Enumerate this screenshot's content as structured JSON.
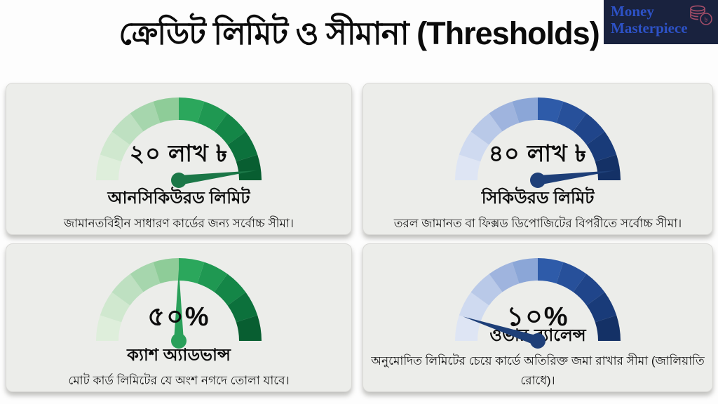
{
  "header": {
    "title": "ক্রেডিট লিমিট ও সীমানা (Thresholds)",
    "logo": {
      "line1": "Money",
      "line2": "Masterpiece",
      "currency_symbol": "৳",
      "text_color": "#2d52c7",
      "bg_color": "#19223e",
      "icon_color": "#a34d68"
    }
  },
  "cards": [
    {
      "value": "২০ লাখ ৳",
      "label": "আনসিকিউরড লিমিট",
      "description": "জামানতবিহীন সাধারণ কার্ডের জন্য সর্বোচ্চ সীমা।",
      "gauge": {
        "percent": 96,
        "needle_length": 112,
        "needle_color": "#1b7747",
        "segment_colors": [
          "#deeedb",
          "#d0e8cf",
          "#bee0c1",
          "#a6d6ad",
          "#8ecc98",
          "#2ba75c",
          "#1f9852",
          "#148647",
          "#0c713c",
          "#085e31"
        ]
      }
    },
    {
      "value": "৪০ লাখ ৳",
      "label": "সিকিউরড লিমিট",
      "description": "তরল জামানত বা ফিক্সড ডিপোজিটের বিপরীতে সর্বোচ্চ সীমা।",
      "gauge": {
        "percent": 96,
        "needle_length": 112,
        "needle_color": "#1e3f78",
        "segment_colors": [
          "#dee5f4",
          "#cfdaf0",
          "#b9c9e8",
          "#9fb4de",
          "#8ba6d7",
          "#2e5ba9",
          "#27509a",
          "#20458a",
          "#193b79",
          "#143166"
        ]
      }
    },
    {
      "value": "৫০%",
      "label": "ক্যাশ অ্যাডভান্স",
      "description": "মোট কার্ড লিমিটের যে অংশ নগদে তোলা যাবে।",
      "gauge": {
        "percent": 50,
        "needle_length": 102,
        "needle_color": "#2aa05a",
        "segment_colors": [
          "#deeedb",
          "#d0e8cf",
          "#bee0c1",
          "#a6d6ad",
          "#8ecc98",
          "#2ba75c",
          "#1f9852",
          "#148647",
          "#0c713c",
          "#085e31"
        ]
      }
    },
    {
      "value": "১০%",
      "label": "ওভার-ব্যালেন্স",
      "description": "অনুমোদিত লিমিটের চেয়ে কার্ডে অতিরিক্ত জমা রাখার সীমা (জালিয়াতি রোধে)।",
      "gauge": {
        "percent": 10,
        "needle_length": 112,
        "needle_color": "#1e3f78",
        "segment_colors": [
          "#dee5f4",
          "#cfdaf0",
          "#b9c9e8",
          "#9fb4de",
          "#8ba6d7",
          "#2e5ba9",
          "#27509a",
          "#20458a",
          "#193b79",
          "#143166"
        ]
      }
    }
  ],
  "chart_data": [
    {
      "type": "gauge",
      "title": "আনসিকিউরড লিমিট",
      "value_label": "২০ লাখ ৳",
      "needle_percent": 96,
      "note": "জামানতবিহীন সাধারণ কার্ডের জন্য সর্বোচ্চ সীমা।",
      "color_scheme": "green"
    },
    {
      "type": "gauge",
      "title": "সিকিউরড লিমিট",
      "value_label": "৪০ লাখ ৳",
      "needle_percent": 96,
      "note": "তরল জামানত বা ফিক্সড ডিপোজিটের বিপরীতে সর্বোচ্চ সীমা।",
      "color_scheme": "blue"
    },
    {
      "type": "gauge",
      "title": "ক্যাশ অ্যাডভান্স",
      "value_label": "৫০%",
      "needle_percent": 50,
      "note": "মোট কার্ড লিমিটের যে অংশ নগদে তোলা যাবে।",
      "color_scheme": "green"
    },
    {
      "type": "gauge",
      "title": "ওভার-ব্যালেন্স",
      "value_label": "১০%",
      "needle_percent": 10,
      "note": "অনুমোদিত লিমিটের চেয়ে কার্ডে অতিরিক্ত জমা রাখার সীমা (জালিয়াতি রোধে)।",
      "color_scheme": "blue"
    }
  ]
}
